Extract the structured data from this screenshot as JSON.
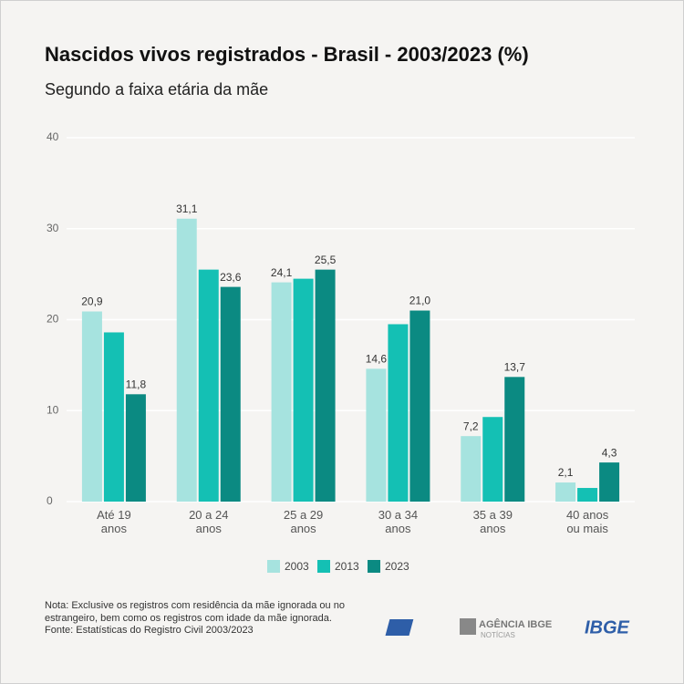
{
  "chart_data": {
    "type": "bar",
    "title": "Nascidos vivos registrados - Brasil - 2003/2023  (%)",
    "subtitle": "Segundo a faixa etária da mãe",
    "categories": [
      "Até 19\nanos",
      "20 a 24\nanos",
      "25 a 29\nanos",
      "30 a 34\nanos",
      "35 a 39\nanos",
      "40 anos\nou mais"
    ],
    "series": [
      {
        "name": "2003",
        "color": "#a6e3df",
        "values": [
          20.9,
          31.1,
          24.1,
          14.6,
          7.2,
          2.1
        ],
        "value_labels": [
          "20,9",
          "31,1",
          "24,1",
          "14,6",
          "7,2",
          "2,1"
        ]
      },
      {
        "name": "2013",
        "color": "#14c0b4",
        "values": [
          18.6,
          25.5,
          24.5,
          19.5,
          9.3,
          1.5
        ]
      },
      {
        "name": "2023",
        "color": "#0b8a82",
        "values": [
          11.8,
          23.6,
          25.5,
          21.0,
          13.7,
          4.3
        ],
        "value_labels": [
          "11,8",
          "23,6",
          "25,5",
          "21,0",
          "13,7",
          "4,3"
        ]
      }
    ],
    "ylim": [
      0,
      40
    ],
    "yticks": [
      0,
      10,
      20,
      30,
      40
    ],
    "grid": true,
    "note": "Nota: Exclusive os registros com residência da mãe ignorada ou no estrangeiro, bem como os registros com idade da mãe ignorada.",
    "source": "Fonte: Estatísticas do Registro Civil 2003/2023"
  },
  "logos": {
    "agency": "AGÊNCIA IBGE",
    "agency_sub": "NOTÍCIAS",
    "ibge": "IBGE"
  }
}
